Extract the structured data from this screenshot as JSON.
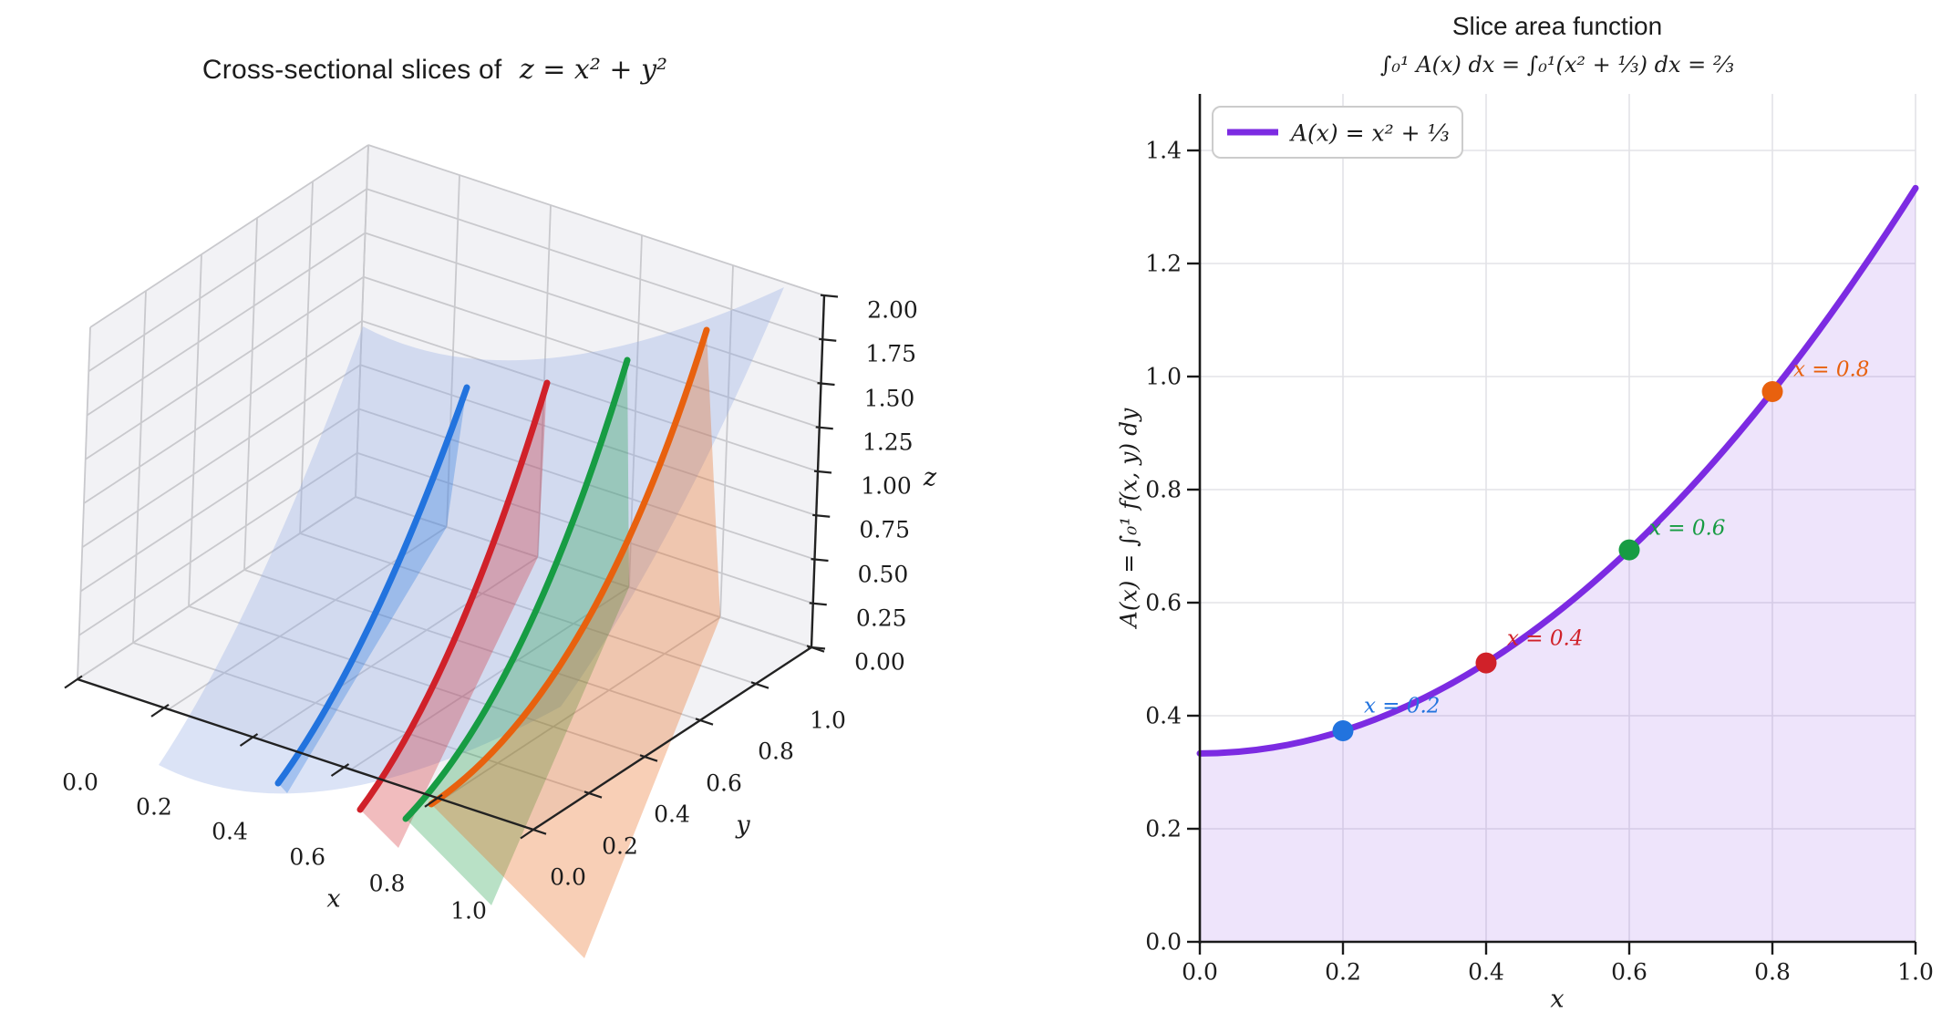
{
  "figure": {
    "background": "#ffffff"
  },
  "left_plot": {
    "title_text": "Cross-sectional slices of",
    "title_math": "z = x² + y²",
    "xlabel": "x",
    "ylabel": "y",
    "zlabel": "z",
    "x_ticks": [
      "0.0",
      "0.2",
      "0.4",
      "0.6",
      "0.8",
      "1.0"
    ],
    "y_ticks": [
      "0.0",
      "0.2",
      "0.4",
      "0.6",
      "0.8",
      "1.0"
    ],
    "z_ticks": [
      "0.00",
      "0.25",
      "0.50",
      "0.75",
      "1.00",
      "1.25",
      "1.50",
      "1.75",
      "2.00"
    ],
    "surface_color": "#8ea9e2",
    "pane_color": "#f2f2f5",
    "grid_color": "#c9c9cd",
    "slices": [
      {
        "x": 0.2,
        "color": "#2273de"
      },
      {
        "x": 0.4,
        "color": "#d02129"
      },
      {
        "x": 0.6,
        "color": "#179c43"
      },
      {
        "x": 0.8,
        "color": "#e8610e"
      }
    ]
  },
  "right_plot": {
    "title": "Slice area function",
    "subtitle": "∫₀¹ A(x) dx = ∫₀¹(x² + ⅓) dx = ⅔",
    "xlabel": "x",
    "ylabel": "A(x) = ∫₀¹ f(x, y) dy",
    "legend_label": "A(x) = x² + ⅓",
    "curve_color": "#7c2be2",
    "fill_color": "#7c2be2",
    "fill_opacity": 0.13,
    "x_ticks": [
      "0.0",
      "0.2",
      "0.4",
      "0.6",
      "0.8",
      "1.0"
    ],
    "y_ticks": [
      "0.0",
      "0.2",
      "0.4",
      "0.6",
      "0.8",
      "1.0",
      "1.2",
      "1.4"
    ],
    "points": [
      {
        "x": 0.2,
        "A": 0.3733,
        "label": "x = 0.2",
        "color": "#2273de"
      },
      {
        "x": 0.4,
        "A": 0.4933,
        "label": "x = 0.4",
        "color": "#d02129"
      },
      {
        "x": 0.6,
        "A": 0.6933,
        "label": "x = 0.6",
        "color": "#179c43"
      },
      {
        "x": 0.8,
        "A": 0.9733,
        "label": "x = 0.8",
        "color": "#e8610e"
      }
    ]
  },
  "chart_data": [
    {
      "type": "surface",
      "title": "Cross-sectional slices of z = x² + y²",
      "formula": "z = x² + y²",
      "xlabel": "x",
      "ylabel": "y",
      "zlabel": "z",
      "xlim": [
        0,
        1
      ],
      "ylim": [
        0,
        1
      ],
      "zlim": [
        0,
        2
      ],
      "x_ticks": [
        0,
        0.2,
        0.4,
        0.6,
        0.8,
        1.0
      ],
      "y_ticks": [
        0,
        0.2,
        0.4,
        0.6,
        0.8,
        1.0
      ],
      "z_ticks": [
        0,
        0.25,
        0.5,
        0.75,
        1.0,
        1.25,
        1.5,
        1.75,
        2.0
      ],
      "surface_alpha": 0.3,
      "slices": [
        {
          "x": 0.2,
          "curve": "z = 0.04 + y²",
          "color": "#2273de"
        },
        {
          "x": 0.4,
          "curve": "z = 0.16 + y²",
          "color": "#d02129"
        },
        {
          "x": 0.6,
          "curve": "z = 0.36 + y²",
          "color": "#179c43"
        },
        {
          "x": 0.8,
          "curve": "z = 0.64 + y²",
          "color": "#e8610e"
        }
      ]
    },
    {
      "type": "line",
      "title": "Slice area function",
      "subtitle": "∫₀¹ A(x) dx = ∫₀¹(x² + ⅓) dx = ⅔",
      "xlabel": "x",
      "ylabel": "A(x) = ∫₀¹ f(x, y) dy",
      "xlim": [
        0,
        1
      ],
      "ylim": [
        0,
        1.5
      ],
      "x_ticks": [
        0,
        0.2,
        0.4,
        0.6,
        0.8,
        1.0
      ],
      "y_ticks": [
        0,
        0.2,
        0.4,
        0.6,
        0.8,
        1.0,
        1.2,
        1.4
      ],
      "grid": true,
      "legend_position": "upper left",
      "legend": [
        {
          "label": "A(x) = x² + ⅓",
          "color": "#7c2be2"
        }
      ],
      "fill_under_curve": true,
      "area_under_curve": "2/3",
      "series": [
        {
          "name": "A(x) = x² + 1/3",
          "x": [
            0,
            0.1,
            0.2,
            0.3,
            0.4,
            0.5,
            0.6,
            0.7,
            0.8,
            0.9,
            1.0
          ],
          "y": [
            0.3333,
            0.3433,
            0.3733,
            0.4233,
            0.4933,
            0.5833,
            0.6933,
            0.8233,
            0.9733,
            1.1433,
            1.3333
          ]
        }
      ],
      "marked_points": [
        {
          "x": 0.2,
          "y": 0.3733,
          "label": "x = 0.2",
          "color": "#2273de"
        },
        {
          "x": 0.4,
          "y": 0.4933,
          "label": "x = 0.4",
          "color": "#d02129"
        },
        {
          "x": 0.6,
          "y": 0.6933,
          "label": "x = 0.6",
          "color": "#179c43"
        },
        {
          "x": 0.8,
          "y": 0.9733,
          "label": "x = 0.8",
          "color": "#e8610e"
        }
      ]
    }
  ]
}
